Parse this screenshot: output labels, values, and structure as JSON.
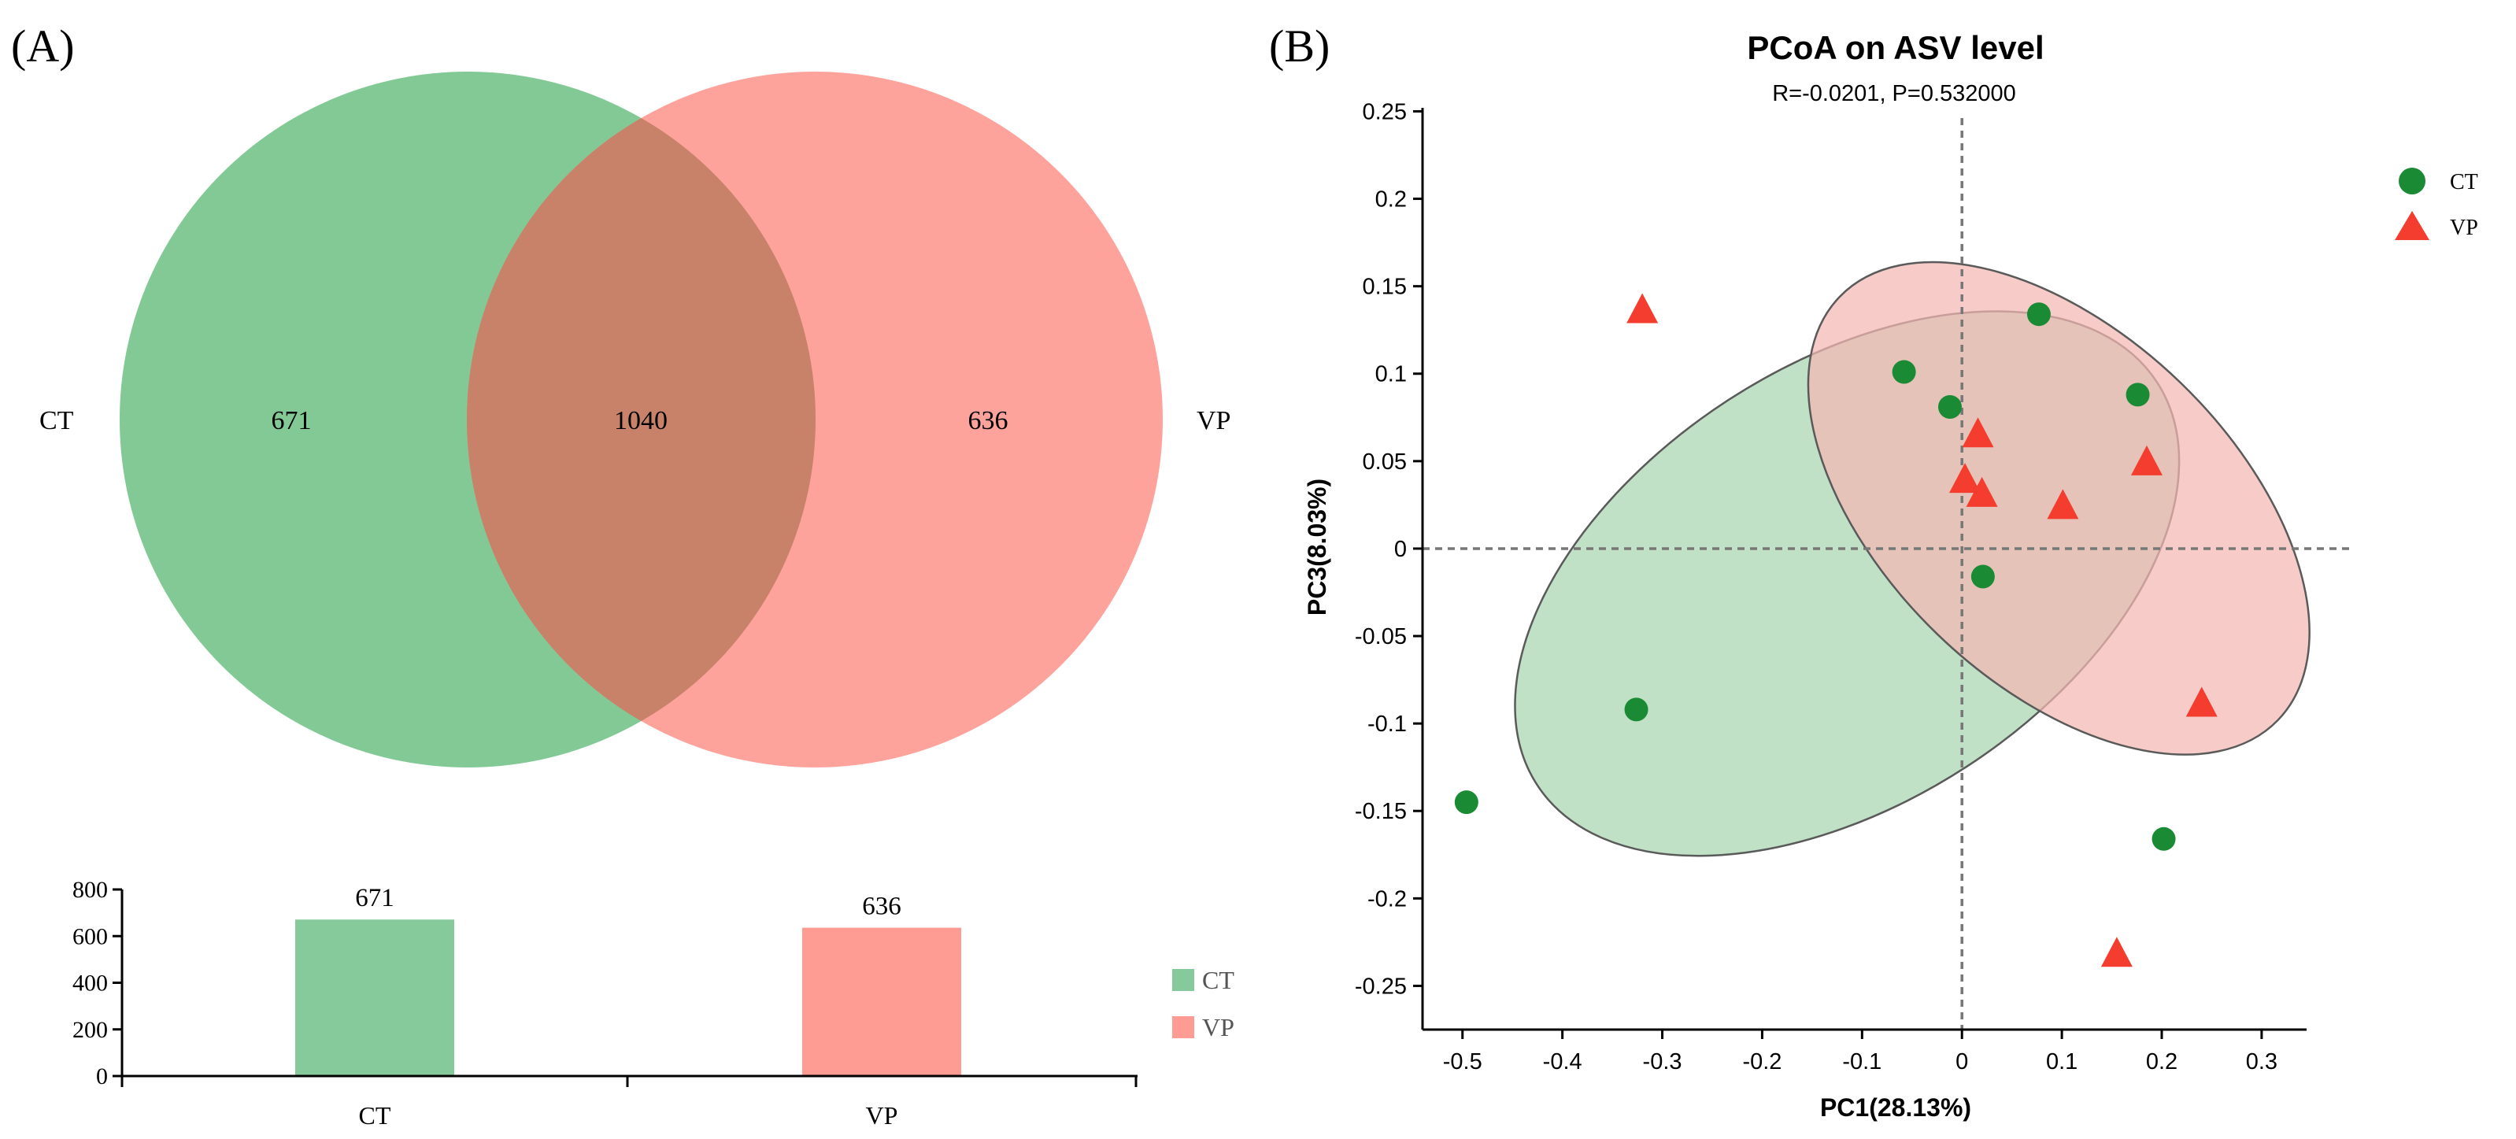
{
  "panel_a_label": "(A)",
  "panel_b_label": "(B)",
  "chart_data": [
    {
      "type": "venn",
      "sets": [
        {
          "name": "CT",
          "unique": 671,
          "color": "#6cbf84"
        },
        {
          "name": "VP",
          "unique": 636,
          "color": "#fe8b83"
        }
      ],
      "intersection": 1040,
      "overlap_color": "#c8826a"
    },
    {
      "type": "bar",
      "categories": [
        "CT",
        "VP"
      ],
      "values": [
        671,
        636
      ],
      "data_labels": [
        "671",
        "636"
      ],
      "colors": [
        "#86c99a",
        "#fe9c94"
      ],
      "ylim": [
        0,
        800
      ],
      "yticks": [
        0,
        200,
        400,
        600,
        800
      ],
      "legend": [
        "CT",
        "VP"
      ],
      "legend_position": "right"
    },
    {
      "type": "scatter",
      "title": "PCoA on ASV level",
      "subtitle": "R=-0.0201, P=0.532000",
      "xlabel": "PC1(28.13%)",
      "ylabel": "PC3(8.03%)",
      "xlim": [
        -0.54,
        0.345
      ],
      "ylim": [
        -0.275,
        0.252
      ],
      "xticks": [
        -0.5,
        -0.4,
        -0.3,
        -0.2,
        -0.1,
        0,
        0.1,
        0.2,
        0.3
      ],
      "yticks": [
        -0.25,
        -0.2,
        -0.15,
        -0.1,
        -0.05,
        0,
        0.05,
        0.1,
        0.15,
        0.2,
        0.25
      ],
      "legend_position": "top-right",
      "series": [
        {
          "name": "CT",
          "marker": "circle",
          "color": "#1a8a35",
          "ellipse_color": "#a9d6b2",
          "points": [
            {
              "x": -0.496,
              "y": -0.145
            },
            {
              "x": -0.326,
              "y": -0.092
            },
            {
              "x": -0.058,
              "y": 0.101
            },
            {
              "x": -0.012,
              "y": 0.081
            },
            {
              "x": 0.021,
              "y": -0.016
            },
            {
              "x": 0.077,
              "y": 0.134
            },
            {
              "x": 0.176,
              "y": 0.088
            },
            {
              "x": 0.202,
              "y": -0.166
            }
          ],
          "ellipse": {
            "cx": -0.115,
            "cy": -0.02,
            "rx": 0.37,
            "ry": 0.125,
            "angle_deg": 33
          }
        },
        {
          "name": "VP",
          "marker": "triangle",
          "color": "#f43d2e",
          "ellipse_color": "#f3b7b3",
          "points": [
            {
              "x": -0.32,
              "y": 0.137
            },
            {
              "x": 0.016,
              "y": 0.066
            },
            {
              "x": 0.003,
              "y": 0.04
            },
            {
              "x": 0.02,
              "y": 0.032
            },
            {
              "x": 0.101,
              "y": 0.025
            },
            {
              "x": 0.185,
              "y": 0.05
            },
            {
              "x": 0.24,
              "y": -0.088
            },
            {
              "x": 0.155,
              "y": -0.231
            }
          ],
          "ellipse": {
            "cx": 0.097,
            "cy": 0.023,
            "rx": 0.305,
            "ry": 0.1,
            "angle_deg": -44
          }
        }
      ]
    }
  ]
}
